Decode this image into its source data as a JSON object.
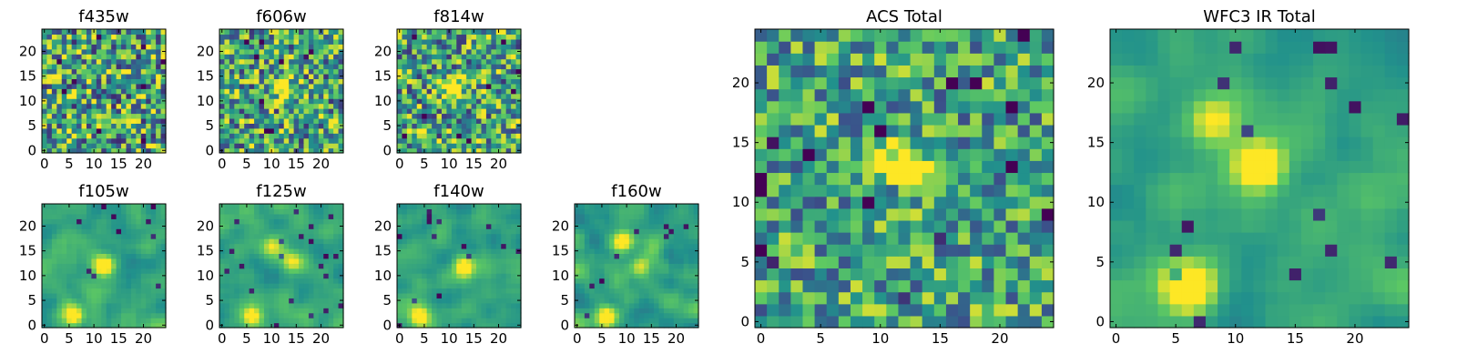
{
  "figure": {
    "colormap": "viridis",
    "colormap_stops": [
      "#440154",
      "#3b528b",
      "#21918c",
      "#5ec962",
      "#fde725"
    ],
    "frame_color": "#000000"
  },
  "chart_data": [
    {
      "type": "heatmap",
      "title": "f435w",
      "grid_size": 25,
      "xlim": [
        0,
        24
      ],
      "ylim": [
        0,
        24
      ],
      "xticks": [
        0,
        5,
        10,
        15,
        20
      ],
      "yticks": [
        0,
        5,
        10,
        15,
        20
      ],
      "xtick_labels": [
        "0",
        "5",
        "10",
        "15",
        "20"
      ],
      "ytick_labels": [
        "0",
        "5",
        "10",
        "15",
        "20"
      ],
      "pattern": "noise",
      "noise_level": 0.9,
      "hot_spots": []
    },
    {
      "type": "heatmap",
      "title": "f606w",
      "grid_size": 25,
      "xlim": [
        0,
        24
      ],
      "ylim": [
        0,
        24
      ],
      "xticks": [
        0,
        5,
        10,
        15,
        20
      ],
      "yticks": [
        0,
        5,
        10,
        15,
        20
      ],
      "xtick_labels": [
        "0",
        "5",
        "10",
        "15",
        "20"
      ],
      "ytick_labels": [
        "0",
        "5",
        "10",
        "15",
        "20"
      ],
      "pattern": "noise",
      "noise_level": 0.85,
      "hot_spots": [
        [
          12,
          13,
          0.6
        ]
      ]
    },
    {
      "type": "heatmap",
      "title": "f814w",
      "grid_size": 25,
      "xlim": [
        0,
        24
      ],
      "ylim": [
        0,
        24
      ],
      "xticks": [
        0,
        5,
        10,
        15,
        20
      ],
      "yticks": [
        0,
        5,
        10,
        15,
        20
      ],
      "xtick_labels": [
        "0",
        "5",
        "10",
        "15",
        "20"
      ],
      "ytick_labels": [
        "0",
        "5",
        "10",
        "15",
        "20"
      ],
      "pattern": "noise",
      "noise_level": 0.85,
      "hot_spots": [
        [
          11,
          12,
          0.6
        ],
        [
          5,
          3,
          0.4
        ]
      ]
    },
    {
      "type": "heatmap",
      "title": "f105w",
      "grid_size": 25,
      "xlim": [
        0,
        24
      ],
      "ylim": [
        0,
        24
      ],
      "xticks": [
        0,
        5,
        10,
        15,
        20
      ],
      "yticks": [
        0,
        5,
        10,
        15,
        20
      ],
      "xtick_labels": [
        "0",
        "5",
        "10",
        "15",
        "20"
      ],
      "ytick_labels": [
        "0",
        "5",
        "10",
        "15",
        "20"
      ],
      "pattern": "smooth",
      "noise_level": 0.35,
      "hot_spots": [
        [
          12,
          12,
          0.7
        ],
        [
          6,
          2,
          0.6
        ]
      ]
    },
    {
      "type": "heatmap",
      "title": "f125w",
      "grid_size": 25,
      "xlim": [
        0,
        24
      ],
      "ylim": [
        0,
        24
      ],
      "xticks": [
        0,
        5,
        10,
        15,
        20
      ],
      "yticks": [
        0,
        5,
        10,
        15,
        20
      ],
      "xtick_labels": [
        "0",
        "5",
        "10",
        "15",
        "20"
      ],
      "ytick_labels": [
        "0",
        "5",
        "10",
        "15",
        "20"
      ],
      "pattern": "smooth",
      "noise_level": 0.35,
      "hot_spots": [
        [
          10,
          16,
          0.5
        ],
        [
          14,
          13,
          0.5
        ],
        [
          6,
          2,
          0.5
        ]
      ]
    },
    {
      "type": "heatmap",
      "title": "f140w",
      "grid_size": 25,
      "xlim": [
        0,
        24
      ],
      "ylim": [
        0,
        24
      ],
      "xticks": [
        0,
        5,
        10,
        15,
        20
      ],
      "yticks": [
        0,
        5,
        10,
        15,
        20
      ],
      "xtick_labels": [
        "0",
        "5",
        "10",
        "15",
        "20"
      ],
      "ytick_labels": [
        "0",
        "5",
        "10",
        "15",
        "20"
      ],
      "pattern": "smooth",
      "noise_level": 0.35,
      "hot_spots": [
        [
          13,
          12,
          0.6
        ],
        [
          4,
          2,
          0.6
        ]
      ]
    },
    {
      "type": "heatmap",
      "title": "f160w",
      "grid_size": 25,
      "xlim": [
        0,
        24
      ],
      "ylim": [
        0,
        24
      ],
      "xticks": [
        0,
        5,
        10,
        15,
        20
      ],
      "yticks": [
        0,
        5,
        10,
        15,
        20
      ],
      "xtick_labels": [
        "0",
        "5",
        "10",
        "15",
        "20"
      ],
      "ytick_labels": [
        "0",
        "5",
        "10",
        "15",
        "20"
      ],
      "pattern": "smooth",
      "noise_level": 0.4,
      "hot_spots": [
        [
          9,
          17,
          0.5
        ],
        [
          6,
          2,
          0.7
        ],
        [
          13,
          12,
          0.4
        ]
      ]
    },
    {
      "type": "heatmap",
      "title": "ACS Total",
      "grid_size": 25,
      "xlim": [
        0,
        24
      ],
      "ylim": [
        0,
        24
      ],
      "xticks": [
        0,
        5,
        10,
        15,
        20
      ],
      "yticks": [
        0,
        5,
        10,
        15,
        20
      ],
      "xtick_labels": [
        "0",
        "5",
        "10",
        "15",
        "20"
      ],
      "ytick_labels": [
        "0",
        "5",
        "10",
        "15",
        "20"
      ],
      "pattern": "noise",
      "noise_level": 0.7,
      "hot_spots": [
        [
          12,
          13,
          0.8
        ]
      ]
    },
    {
      "type": "heatmap",
      "title": "WFC3 IR Total",
      "grid_size": 25,
      "xlim": [
        0,
        24
      ],
      "ylim": [
        0,
        24
      ],
      "xticks": [
        0,
        5,
        10,
        15,
        20
      ],
      "yticks": [
        0,
        5,
        10,
        15,
        20
      ],
      "xtick_labels": [
        "0",
        "5",
        "10",
        "15",
        "20"
      ],
      "ytick_labels": [
        "0",
        "5",
        "10",
        "15",
        "20"
      ],
      "pattern": "smooth",
      "noise_level": 0.3,
      "hot_spots": [
        [
          12,
          13,
          0.8
        ],
        [
          6,
          3,
          0.9
        ],
        [
          8,
          17,
          0.5
        ]
      ]
    }
  ]
}
